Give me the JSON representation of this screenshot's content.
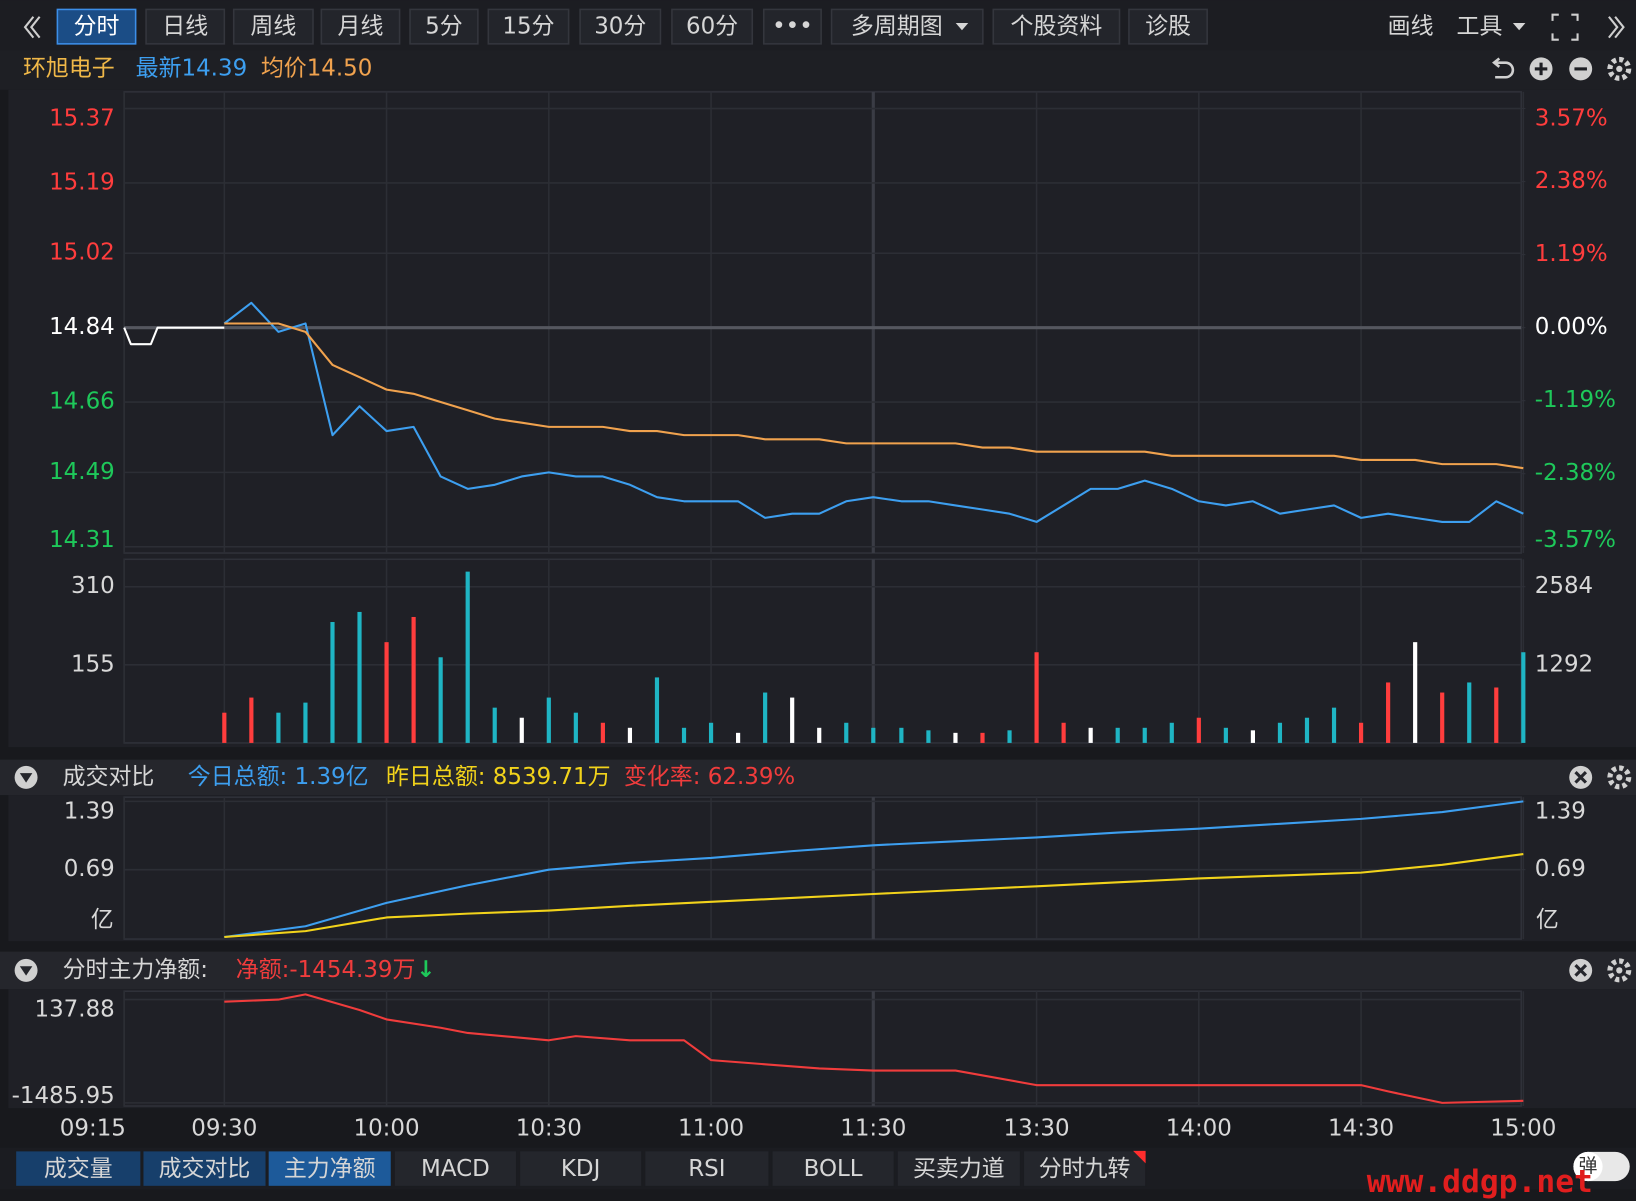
{
  "toolbar": {
    "left": [
      "分时",
      "日线",
      "周线",
      "月线",
      "5分",
      "15分",
      "30分",
      "60分",
      "•••",
      "多周期图",
      "个股资料",
      "诊股"
    ],
    "right": [
      "画线",
      "工具"
    ]
  },
  "header": {
    "name": "环旭电子",
    "latest": "最新14.39",
    "average": "均价14.50"
  },
  "chart_data": [
    {
      "type": "line",
      "x": [
        "09:15",
        "09:16",
        "09:19",
        "09:20",
        "09:25",
        "09:30",
        "09:35",
        "09:40",
        "09:45",
        "09:50",
        "09:55",
        "10:00",
        "10:05",
        "10:10",
        "10:15",
        "10:20",
        "10:25",
        "10:30",
        "10:35",
        "10:40",
        "10:45",
        "10:50",
        "10:55",
        "11:00",
        "11:05",
        "11:10",
        "11:15",
        "11:20",
        "11:25",
        "11:30",
        "13:05",
        "13:10",
        "13:15",
        "13:20",
        "13:25",
        "13:30",
        "13:35",
        "13:40",
        "13:45",
        "13:50",
        "13:55",
        "14:00",
        "14:05",
        "14:10",
        "14:15",
        "14:20",
        "14:25",
        "14:30",
        "14:35",
        "14:40",
        "14:45",
        "14:50",
        "14:55",
        "15:00"
      ],
      "series": [
        {
          "color": "#ffffff",
          "values": [
            14.84,
            14.8,
            14.8,
            14.84,
            14.84,
            14.84,
            null,
            null,
            null,
            null,
            null,
            null,
            null,
            null,
            null,
            null,
            null,
            null,
            null,
            null,
            null,
            null,
            null,
            null,
            null,
            null,
            null,
            null,
            null,
            null,
            null,
            null,
            null,
            null,
            null,
            null,
            null,
            null,
            null,
            null,
            null,
            null,
            null,
            null,
            null,
            null,
            null,
            null,
            null,
            null,
            null,
            null,
            null,
            null
          ]
        },
        {
          "color": "#3d9ff0",
          "values": [
            null,
            null,
            null,
            null,
            null,
            14.85,
            14.9,
            14.83,
            14.85,
            14.58,
            14.65,
            14.59,
            14.6,
            14.48,
            14.45,
            14.46,
            14.48,
            14.49,
            14.48,
            14.48,
            14.46,
            14.43,
            14.42,
            14.42,
            14.42,
            14.38,
            14.39,
            14.39,
            14.42,
            14.43,
            14.42,
            14.42,
            14.41,
            14.4,
            14.39,
            14.37,
            14.41,
            14.45,
            14.45,
            14.47,
            14.45,
            14.42,
            14.41,
            14.42,
            14.39,
            14.4,
            14.41,
            14.38,
            14.39,
            14.38,
            14.37,
            14.37,
            14.42,
            14.39
          ]
        },
        {
          "color": "#f0a24e",
          "values": [
            null,
            null,
            null,
            null,
            null,
            14.85,
            14.85,
            14.85,
            14.83,
            14.75,
            14.72,
            14.69,
            14.68,
            14.66,
            14.64,
            14.62,
            14.61,
            14.6,
            14.6,
            14.6,
            14.59,
            14.59,
            14.58,
            14.58,
            14.58,
            14.57,
            14.57,
            14.57,
            14.56,
            14.56,
            14.56,
            14.56,
            14.56,
            14.55,
            14.55,
            14.54,
            14.54,
            14.54,
            14.54,
            14.54,
            14.53,
            14.53,
            14.53,
            14.53,
            14.53,
            14.53,
            14.53,
            14.52,
            14.52,
            14.52,
            14.51,
            14.51,
            14.51,
            14.5
          ]
        }
      ],
      "ylim": [
        14.31,
        15.37
      ],
      "yticks": [
        15.37,
        15.19,
        15.02,
        14.84,
        14.66,
        14.49,
        14.31
      ],
      "y2lim": [
        -3.57,
        3.57
      ],
      "y2ticks": [
        {
          "value": 3.57,
          "label": "3.57%"
        },
        {
          "value": 2.38,
          "label": "2.38%"
        },
        {
          "value": 1.19,
          "label": "1.19%"
        },
        {
          "value": 0,
          "label": "0.00%"
        },
        {
          "value": -1.19,
          "label": "-1.19%"
        },
        {
          "value": -2.38,
          "label": "-2.38%"
        },
        {
          "value": -3.57,
          "label": "-3.57%"
        }
      ],
      "grid": true,
      "up_color": "#ff3d3d",
      "down_color": "#1ec85a",
      "flat_color": "#ffffff"
    },
    {
      "type": "bar",
      "x": [
        "09:30",
        "09:35",
        "09:40",
        "09:45",
        "09:50",
        "09:55",
        "10:00",
        "10:05",
        "10:10",
        "10:15",
        "10:20",
        "10:25",
        "10:30",
        "10:35",
        "10:40",
        "10:45",
        "10:50",
        "10:55",
        "11:00",
        "11:05",
        "11:10",
        "11:15",
        "11:20",
        "11:25",
        "11:30",
        "13:05",
        "13:10",
        "13:15",
        "13:20",
        "13:25",
        "13:30",
        "13:35",
        "13:40",
        "13:45",
        "13:50",
        "13:55",
        "14:00",
        "14:05",
        "14:10",
        "14:15",
        "14:20",
        "14:25",
        "14:30",
        "14:35",
        "14:40",
        "14:45",
        "14:50",
        "14:55",
        "15:00"
      ],
      "values": [
        60,
        90,
        60,
        80,
        240,
        260,
        200,
        250,
        170,
        340,
        70,
        50,
        90,
        60,
        40,
        30,
        130,
        30,
        40,
        20,
        100,
        90,
        30,
        40,
        30,
        30,
        25,
        20,
        20,
        25,
        180,
        40,
        30,
        30,
        30,
        40,
        50,
        30,
        25,
        40,
        50,
        70,
        40,
        120,
        200,
        100,
        120,
        110,
        180
      ],
      "colors": [
        "#ff3d3d",
        "#ff3d3d",
        "#1fb5c4",
        "#1fb5c4",
        "#1fb5c4",
        "#1fb5c4",
        "#ff3d3d",
        "#ff3d3d",
        "#1fb5c4",
        "#1fb5c4",
        "#1fb5c4",
        "#ffffff",
        "#1fb5c4",
        "#1fb5c4",
        "#ff3d3d",
        "#ffffff",
        "#1fb5c4",
        "#1fb5c4",
        "#1fb5c4",
        "#ffffff",
        "#1fb5c4",
        "#ffffff",
        "#ffffff",
        "#1fb5c4",
        "#1fb5c4",
        "#1fb5c4",
        "#1fb5c4",
        "#ffffff",
        "#ff3d3d",
        "#1fb5c4",
        "#ff3d3d",
        "#ff3d3d",
        "#ffffff",
        "#1fb5c4",
        "#1fb5c4",
        "#1fb5c4",
        "#ff3d3d",
        "#1fb5c4",
        "#ffffff",
        "#1fb5c4",
        "#1fb5c4",
        "#1fb5c4",
        "#ff3d3d",
        "#ff3d3d",
        "#ffffff",
        "#ff3d3d",
        "#1fb5c4",
        "#ff3d3d",
        "#1fb5c4"
      ],
      "ylim": [
        0,
        350
      ],
      "yticks": [
        310,
        155
      ],
      "y2lim": [
        0,
        2917
      ],
      "y2ticks": [
        2584,
        1292
      ],
      "grid": true
    },
    {
      "type": "line",
      "title": "成交对比",
      "x": [
        "09:30",
        "09:45",
        "10:00",
        "10:15",
        "10:30",
        "10:45",
        "11:00",
        "11:15",
        "11:30",
        "13:15",
        "13:30",
        "13:45",
        "14:00",
        "14:15",
        "14:30",
        "14:45",
        "15:00"
      ],
      "series": [
        {
          "name": "今日总额: 1.39亿",
          "color": "#3d9ff0",
          "values": [
            0,
            0.11,
            0.35,
            0.53,
            0.69,
            0.76,
            0.81,
            0.88,
            0.94,
            0.98,
            1.02,
            1.07,
            1.11,
            1.16,
            1.21,
            1.28,
            1.39
          ]
        },
        {
          "name": "昨日总额: 8539.71万",
          "color": "#f2d31b",
          "values": [
            0,
            0.06,
            0.2,
            0.24,
            0.27,
            0.32,
            0.36,
            0.4,
            0.44,
            0.48,
            0.52,
            0.56,
            0.6,
            0.63,
            0.66,
            0.74,
            0.85
          ]
        }
      ],
      "annotation": "变化率: 62.39%",
      "ylim": [
        0,
        1.39
      ],
      "yticks": [
        1.39,
        0.69
      ],
      "y2lim": [
        0,
        1.39
      ],
      "y2ticks": [
        1.39,
        0.69
      ],
      "y_unit": "亿",
      "grid": true
    },
    {
      "type": "line",
      "title": "分时主力净额:",
      "annotation": "净额:-1454.39万",
      "annotation_arrow": "↓",
      "x": [
        "09:30",
        "09:40",
        "09:45",
        "09:55",
        "10:00",
        "10:10",
        "10:15",
        "10:30",
        "10:35",
        "10:45",
        "10:55",
        "11:00",
        "11:10",
        "11:20",
        "11:30",
        "13:15",
        "13:30",
        "14:00",
        "14:30",
        "14:35",
        "14:45",
        "15:00"
      ],
      "series": [
        {
          "color": "#f03c3c",
          "values": [
            105,
            138,
            220,
            -26,
            -174,
            -305,
            -387,
            -502,
            -436,
            -502,
            -502,
            -814,
            -879,
            -945,
            -977,
            -977,
            -1207,
            -1207,
            -1207,
            -1305,
            -1486,
            -1453
          ]
        }
      ],
      "ylim": [
        -1485.95,
        137.88
      ],
      "yticks": [
        137.88,
        -1485.95
      ],
      "xticks": [
        "09:15",
        "09:30",
        "10:00",
        "10:30",
        "11:00",
        "11:30",
        "13:30",
        "14:00",
        "14:30",
        "15:00"
      ],
      "grid": true
    }
  ],
  "bottom_tabs": [
    "成交量",
    "成交对比",
    "主力净额",
    "MACD",
    "KDJ",
    "RSI",
    "BOLL",
    "买卖力道",
    "分时九转"
  ],
  "popup_button": "弹",
  "watermark": "www.ddgp.net"
}
